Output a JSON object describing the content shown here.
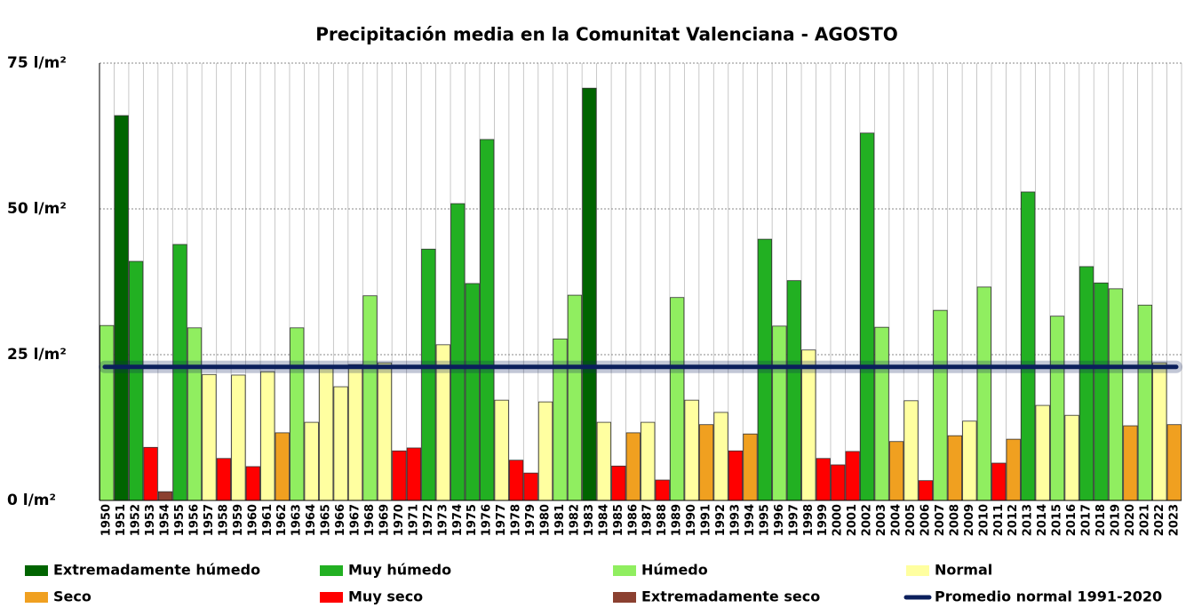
{
  "chart_data": {
    "type": "bar",
    "title": "Precipitación media en la Comunitat Valenciana - AGOSTO",
    "categories": [
      "1950",
      "1951",
      "1952",
      "1953",
      "1954",
      "1955",
      "1956",
      "1957",
      "1958",
      "1959",
      "1960",
      "1961",
      "1962",
      "1963",
      "1964",
      "1965",
      "1966",
      "1967",
      "1968",
      "1969",
      "1970",
      "1971",
      "1972",
      "1973",
      "1974",
      "1975",
      "1976",
      "1977",
      "1978",
      "1979",
      "1980",
      "1981",
      "1982",
      "1983",
      "1984",
      "1985",
      "1986",
      "1987",
      "1988",
      "1989",
      "1990",
      "1991",
      "1992",
      "1993",
      "1994",
      "1995",
      "1996",
      "1997",
      "1998",
      "1999",
      "2000",
      "2001",
      "2002",
      "2003",
      "2004",
      "2005",
      "2006",
      "2007",
      "2008",
      "2009",
      "2010",
      "2011",
      "2012",
      "2013",
      "2014",
      "2015",
      "2016",
      "2017",
      "2018",
      "2019",
      "2020",
      "2021",
      "2022",
      "2023"
    ],
    "values": [
      30,
      66,
      41,
      9.1,
      1.5,
      43.9,
      29.6,
      21.6,
      7.2,
      21.5,
      5.8,
      22.1,
      11.6,
      29.6,
      13.4,
      23,
      19.5,
      23.3,
      35.1,
      23.6,
      8.5,
      9,
      43.1,
      26.7,
      50.9,
      37.2,
      61.9,
      17.2,
      6.9,
      4.7,
      16.9,
      27.7,
      35.2,
      70.7,
      13.4,
      5.9,
      11.6,
      13.4,
      3.5,
      34.8,
      17.2,
      13,
      15.1,
      8.5,
      11.4,
      44.8,
      29.9,
      37.7,
      25.8,
      7.2,
      6.1,
      8.4,
      63,
      29.7,
      10.1,
      17.1,
      3.4,
      32.6,
      11.1,
      13.6,
      36.6,
      6.4,
      10.5,
      52.9,
      16.3,
      31.6,
      14.6,
      40.1,
      37.3,
      36.3,
      12.8,
      33.5,
      23.6,
      13
    ],
    "colors": [
      "#90ee60",
      "#006400",
      "#22b022",
      "#ff0000",
      "#8b4030",
      "#22b022",
      "#90ee60",
      "#ffffa0",
      "#ff0000",
      "#ffffa0",
      "#ff0000",
      "#ffffa0",
      "#f0a020",
      "#90ee60",
      "#ffffa0",
      "#ffffa0",
      "#ffffa0",
      "#ffffa0",
      "#90ee60",
      "#ffffa0",
      "#ff0000",
      "#ff0000",
      "#22b022",
      "#ffffa0",
      "#22b022",
      "#22b022",
      "#22b022",
      "#ffffa0",
      "#ff0000",
      "#ff0000",
      "#ffffa0",
      "#90ee60",
      "#90ee60",
      "#006400",
      "#ffffa0",
      "#ff0000",
      "#f0a020",
      "#ffffa0",
      "#ff0000",
      "#90ee60",
      "#ffffa0",
      "#f0a020",
      "#ffffa0",
      "#ff0000",
      "#f0a020",
      "#22b022",
      "#90ee60",
      "#22b022",
      "#ffffa0",
      "#ff0000",
      "#ff0000",
      "#ff0000",
      "#22b022",
      "#90ee60",
      "#f0a020",
      "#ffffa0",
      "#ff0000",
      "#90ee60",
      "#f0a020",
      "#ffffa0",
      "#90ee60",
      "#ff0000",
      "#f0a020",
      "#22b022",
      "#ffffa0",
      "#90ee60",
      "#ffffa0",
      "#22b022",
      "#22b022",
      "#90ee60",
      "#f0a020",
      "#90ee60",
      "#ffffa0",
      "#f0a020"
    ],
    "legend": [
      {
        "name": "Extremadamente húmedo",
        "color": "#006400"
      },
      {
        "name": "Muy húmedo",
        "color": "#22b022"
      },
      {
        "name": "Húmedo",
        "color": "#90ee60"
      },
      {
        "name": "Normal",
        "color": "#ffffa0"
      },
      {
        "name": "Seco",
        "color": "#f0a020"
      },
      {
        "name": "Muy seco",
        "color": "#ff0000"
      },
      {
        "name": "Extremadamente seco",
        "color": "#8b4030"
      }
    ],
    "reference_line": {
      "name": "Promedio normal 1991-2020",
      "value": 22.9,
      "color": "#0b1f5c"
    },
    "ylim": [
      0,
      75
    ],
    "yticks": [
      {
        "value": 0,
        "label": "0 l/m²"
      },
      {
        "value": 25,
        "label": "25 l/m²"
      },
      {
        "value": 50,
        "label": "50 l/m²"
      },
      {
        "value": 75,
        "label": "75 l/m²"
      }
    ],
    "grid": true
  }
}
